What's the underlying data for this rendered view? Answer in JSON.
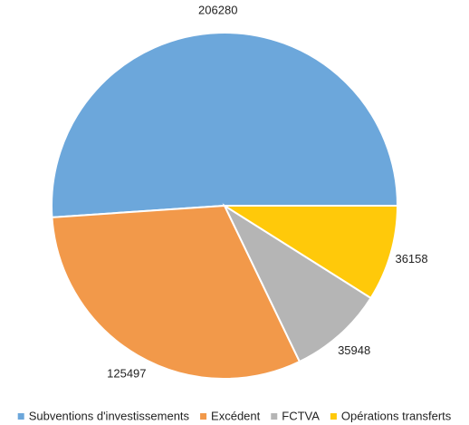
{
  "chart_data": {
    "type": "pie",
    "categories": [
      "Subventions d'investissements",
      "Excédent",
      "FCTVA",
      "Opérations transferts"
    ],
    "values": [
      206280,
      125497,
      35948,
      36158
    ],
    "colors": [
      "#6CA7DB",
      "#F2994A",
      "#B5B5B5",
      "#FFC90A"
    ],
    "legend": "bottom"
  }
}
